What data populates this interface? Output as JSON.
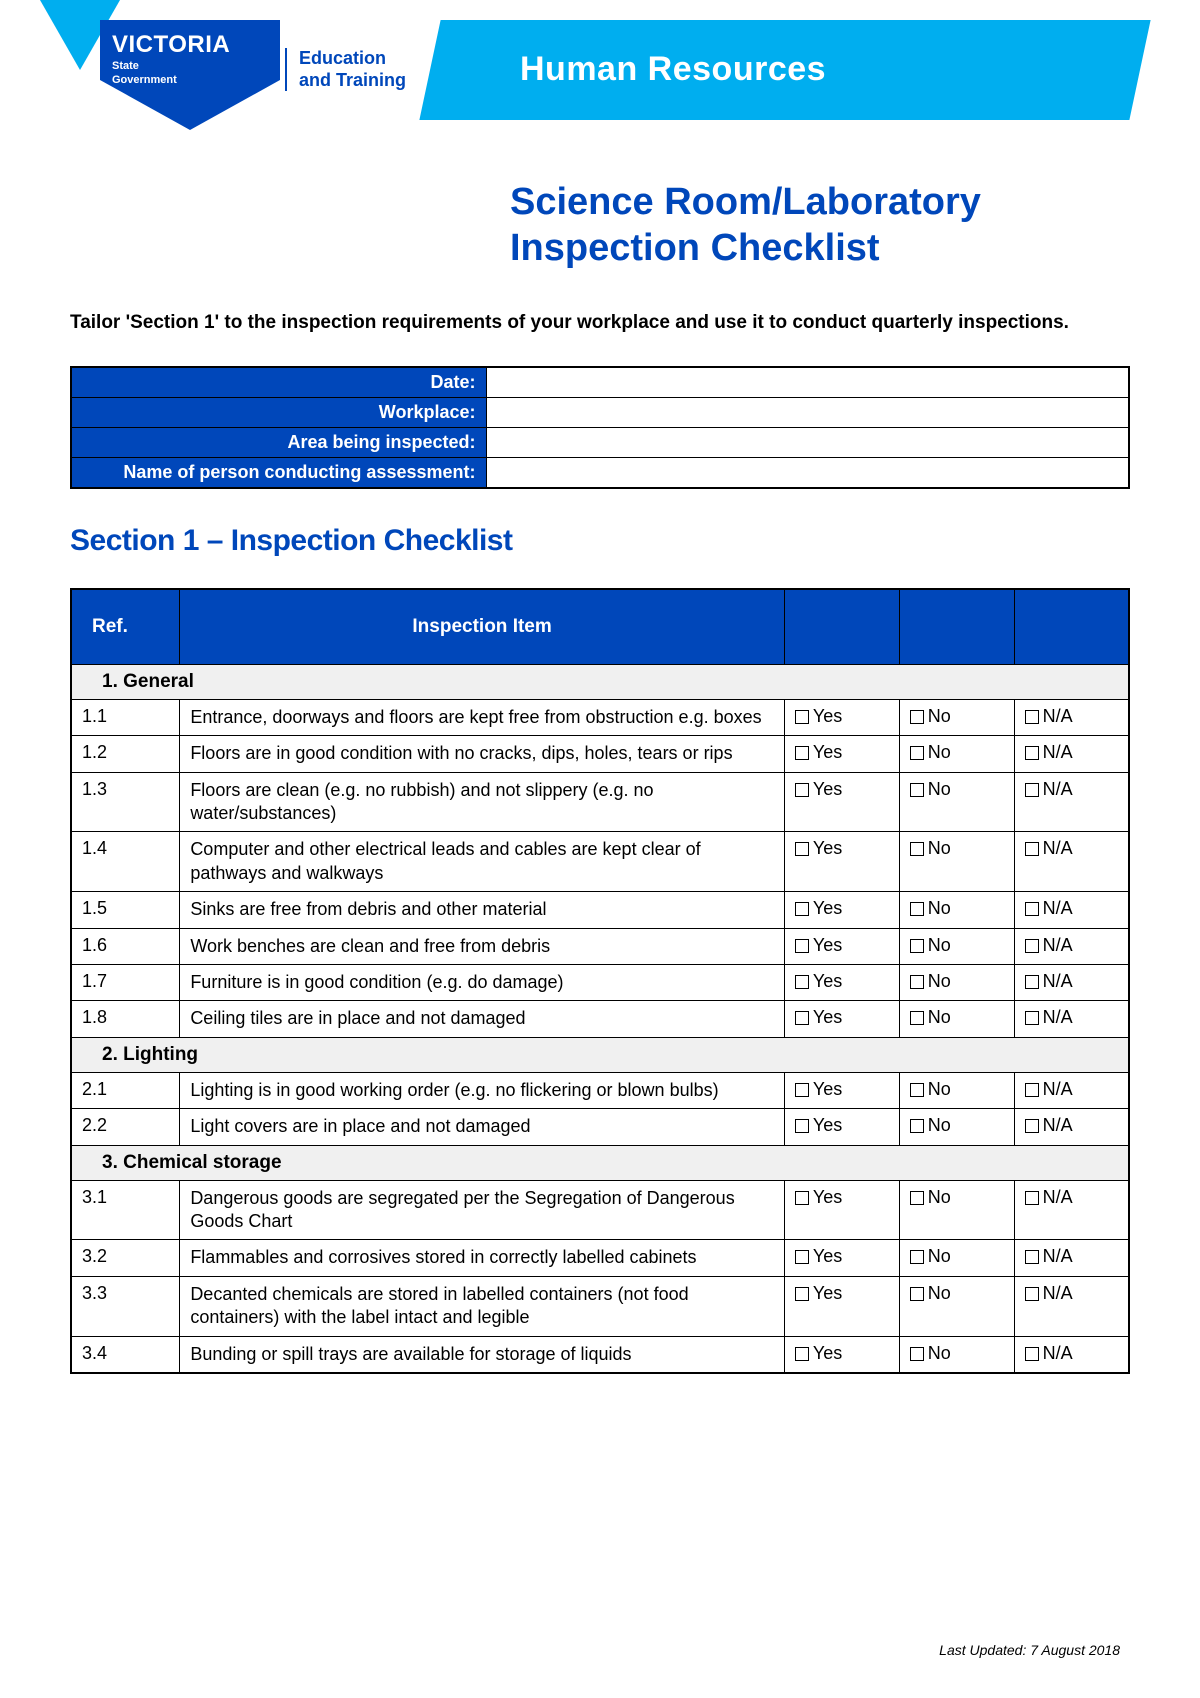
{
  "colors": {
    "brand_blue": "#0047ba",
    "cyan": "#00aeef",
    "white": "#ffffff",
    "black": "#000000",
    "grey_bg": "#f0f0f0"
  },
  "header": {
    "shield_main": "VICTORIA",
    "shield_sub1": "State",
    "shield_sub2": "Government",
    "edu_line1": "Education",
    "edu_line2": "and Training",
    "banner": "Human Resources"
  },
  "title_line1": "Science Room/Laboratory",
  "title_line2": "Inspection Checklist",
  "intro": "Tailor 'Section 1' to the inspection requirements of your workplace and use it to conduct quarterly inspections.",
  "info_rows": [
    {
      "label": "Date:",
      "value": ""
    },
    {
      "label": "Workplace:",
      "value": ""
    },
    {
      "label": "Area being inspected:",
      "value": ""
    },
    {
      "label": "Name of person conducting assessment:",
      "value": ""
    }
  ],
  "section1_heading": "Section 1 – Inspection Checklist",
  "table_headers": {
    "ref": "Ref.",
    "item": "Inspection Item"
  },
  "options": {
    "yes": "Yes",
    "no": "No",
    "na": "N/A"
  },
  "groups": [
    {
      "num": "1.",
      "title": "General",
      "rows": [
        {
          "ref": "1.1",
          "item": "Entrance, doorways and floors are kept free from obstruction e.g. boxes"
        },
        {
          "ref": "1.2",
          "item": "Floors are in good condition with no cracks, dips, holes, tears or rips"
        },
        {
          "ref": "1.3",
          "item": "Floors are clean (e.g. no rubbish) and not slippery (e.g. no water/substances)"
        },
        {
          "ref": "1.4",
          "item": "Computer and other electrical leads and cables are kept clear of pathways and walkways"
        },
        {
          "ref": "1.5",
          "item": "Sinks are free from debris and other material"
        },
        {
          "ref": "1.6",
          "item": "Work benches are clean and free from debris"
        },
        {
          "ref": "1.7",
          "item": "Furniture is in good condition (e.g. do damage)"
        },
        {
          "ref": "1.8",
          "item": "Ceiling tiles are in place and not damaged"
        }
      ]
    },
    {
      "num": "2.",
      "title": "Lighting",
      "rows": [
        {
          "ref": "2.1",
          "item": "Lighting is in good working order (e.g. no flickering or blown bulbs)"
        },
        {
          "ref": "2.2",
          "item": "Light covers are in place and not damaged"
        }
      ]
    },
    {
      "num": "3.",
      "title": "Chemical storage",
      "rows": [
        {
          "ref": "3.1",
          "item": "Dangerous goods are segregated per the Segregation of Dangerous Goods Chart"
        },
        {
          "ref": "3.2",
          "item": "Flammables and corrosives stored in correctly labelled cabinets"
        },
        {
          "ref": "3.3",
          "item": "Decanted chemicals are stored in labelled containers (not food containers) with the label intact and legible"
        },
        {
          "ref": "3.4",
          "item": "Bunding or spill trays are available for storage of liquids"
        }
      ]
    }
  ],
  "footer": "Last Updated: 7 August 2018"
}
